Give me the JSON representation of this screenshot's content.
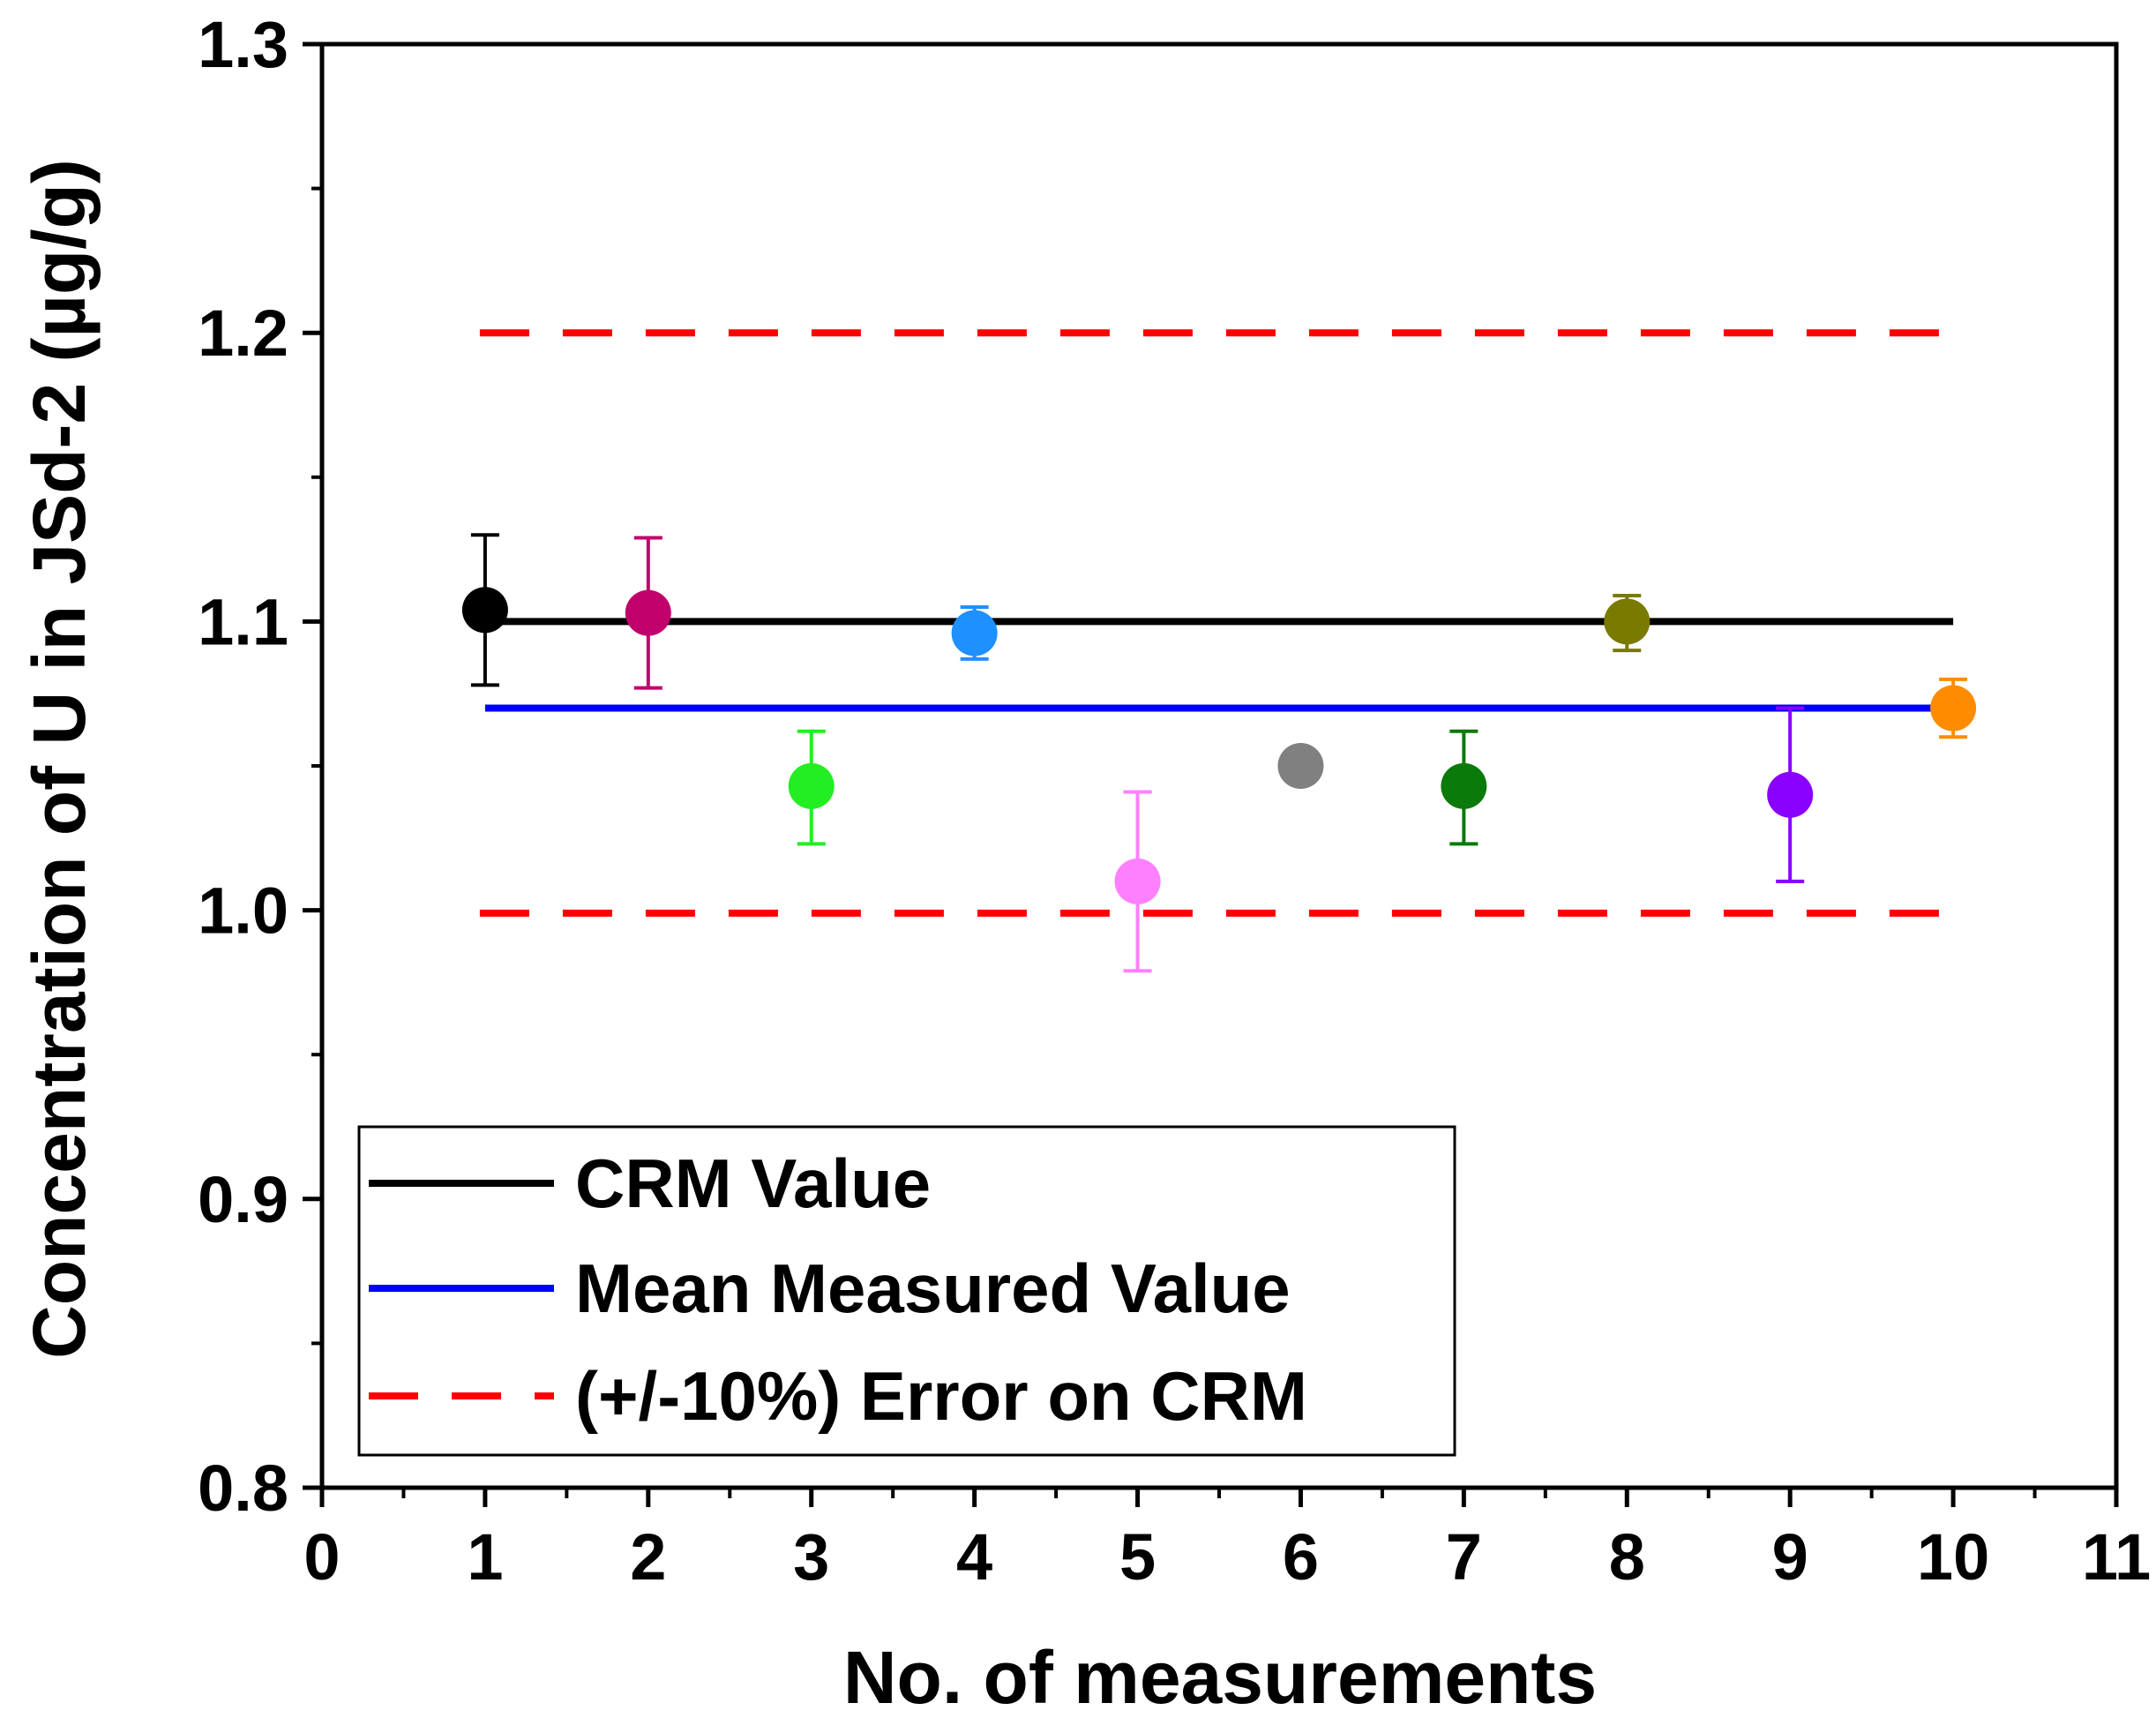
{
  "chart_data": {
    "type": "scatter",
    "title": "",
    "xlabel": "No. of measurements",
    "ylabel": "Concentration of U in JSd-2 (µg/g)",
    "xlim": [
      0,
      11
    ],
    "ylim": [
      0.8,
      1.3
    ],
    "x_ticks": [
      "0",
      "1",
      "2",
      "3",
      "4",
      "5",
      "6",
      "7",
      "8",
      "9",
      "10",
      "11"
    ],
    "y_ticks": [
      "0.8",
      "0.9",
      "1.0",
      "1.1",
      "1.2",
      "1.3"
    ],
    "grid": false,
    "legend_position": "bottom-left",
    "points": [
      {
        "x": 1,
        "y": 1.104,
        "err_low": 1.078,
        "err_high": 1.13,
        "color": "#000000"
      },
      {
        "x": 2,
        "y": 1.103,
        "err_low": 1.077,
        "err_high": 1.129,
        "color": "#c0006b"
      },
      {
        "x": 3,
        "y": 1.043,
        "err_low": 1.023,
        "err_high": 1.062,
        "color": "#22ee22"
      },
      {
        "x": 4,
        "y": 1.096,
        "err_low": 1.087,
        "err_high": 1.105,
        "color": "#1e90ff"
      },
      {
        "x": 5,
        "y": 1.01,
        "err_low": 0.979,
        "err_high": 1.041,
        "color": "#ff80ff"
      },
      {
        "x": 6,
        "y": 1.05,
        "err_low": 1.047,
        "err_high": 1.053,
        "color": "#808080"
      },
      {
        "x": 7,
        "y": 1.043,
        "err_low": 1.023,
        "err_high": 1.062,
        "color": "#0a7a0a"
      },
      {
        "x": 8,
        "y": 1.1,
        "err_low": 1.09,
        "err_high": 1.109,
        "color": "#7a7a00"
      },
      {
        "x": 9,
        "y": 1.04,
        "err_low": 1.01,
        "err_high": 1.07,
        "color": "#8a00ff"
      },
      {
        "x": 10,
        "y": 1.07,
        "err_low": 1.06,
        "err_high": 1.08,
        "color": "#ff8c00"
      }
    ],
    "reference_lines": [
      {
        "name": "CRM Value",
        "y": 1.1,
        "x_range": [
          1,
          10
        ],
        "color": "#000000",
        "style": "solid"
      },
      {
        "name": "Mean Measured Value",
        "y": 1.07,
        "x_range": [
          1,
          10
        ],
        "color": "#0000ff",
        "style": "solid"
      },
      {
        "name": "(+/-10%) Error on CRM",
        "y": 1.2,
        "x_range": [
          1,
          10
        ],
        "color": "#ff0000",
        "style": "dashed"
      },
      {
        "name": "(+/-10%) Error on CRM",
        "y": 0.999,
        "x_range": [
          1,
          10
        ],
        "color": "#ff0000",
        "style": "dashed"
      }
    ],
    "legend": [
      {
        "label": "CRM Value",
        "color": "#000000",
        "style": "solid"
      },
      {
        "label": "Mean Measured Value",
        "color": "#0000ff",
        "style": "solid"
      },
      {
        "label": "(+/-10%) Error on CRM",
        "color": "#ff0000",
        "style": "dashed"
      }
    ]
  }
}
